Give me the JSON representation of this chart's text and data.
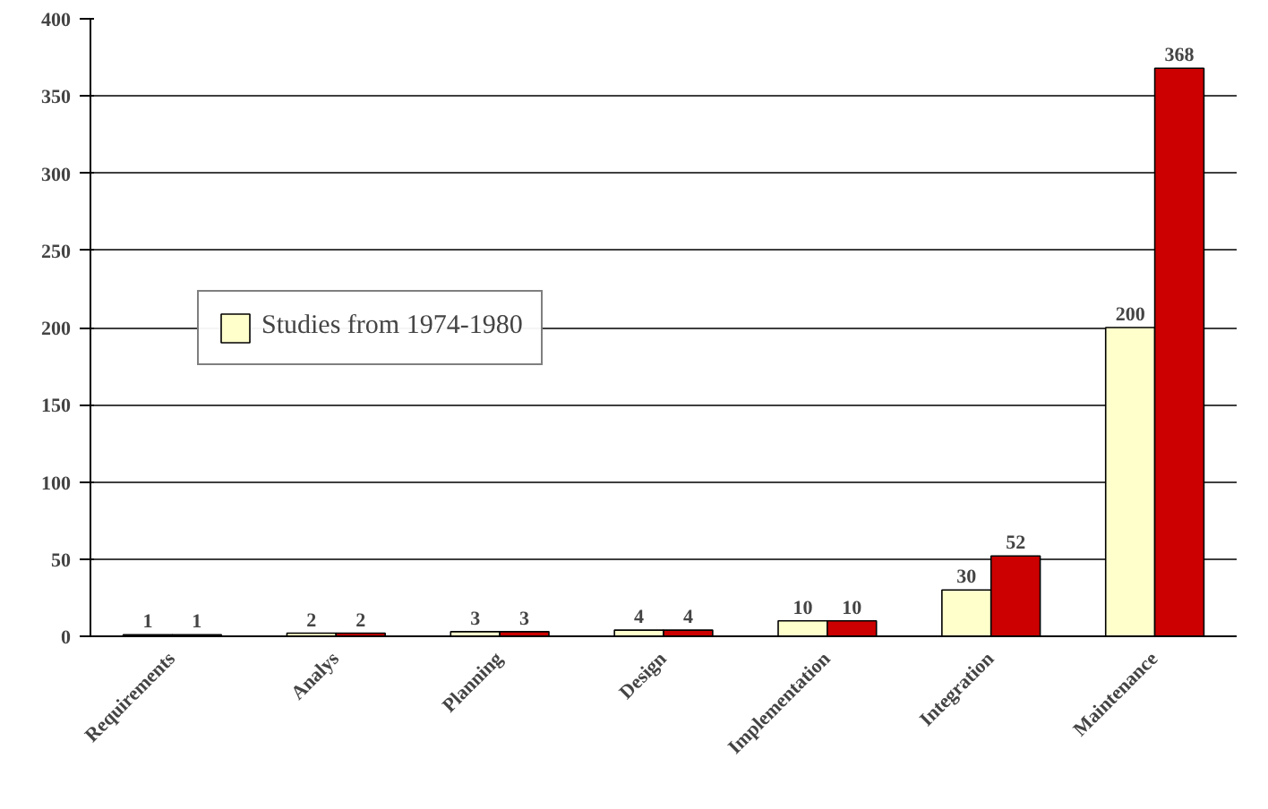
{
  "chart_data": {
    "type": "bar",
    "categories": [
      "Requirements",
      "Analys",
      "Planning",
      "Design",
      "Implementation",
      "Integration",
      "Maintenance"
    ],
    "series": [
      {
        "name": "Studies from 1974-1980",
        "color": "#ffffcc",
        "values": [
          1,
          2,
          3,
          4,
          10,
          30,
          200
        ]
      },
      {
        "color": "#cc0000",
        "values": [
          1,
          2,
          3,
          4,
          10,
          52,
          368
        ]
      }
    ],
    "ylim": [
      0,
      400
    ],
    "yticks": [
      0,
      50,
      100,
      150,
      200,
      250,
      300,
      350,
      400
    ],
    "grid": "y",
    "legend": "left",
    "data_labels": true
  }
}
